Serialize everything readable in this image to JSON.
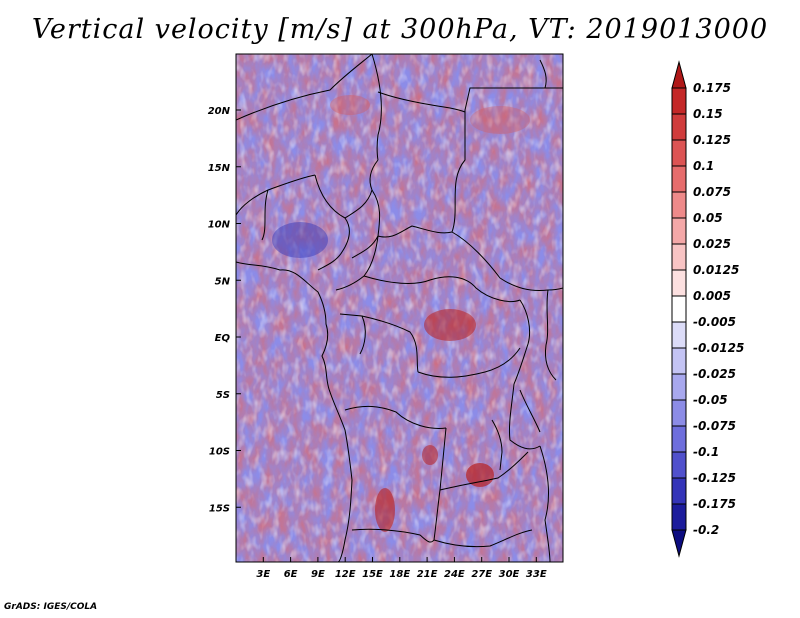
{
  "title": "Vertical velocity [m/s] at 300hPa, VT: 2019013000",
  "credit": "GrADS: IGES/COLA",
  "lat_axis": {
    "labels": [
      "20N",
      "15N",
      "10N",
      "5N",
      "EQ",
      "5S",
      "10S",
      "15S"
    ],
    "values": [
      20,
      15,
      10,
      5,
      0,
      -5,
      -10,
      -15
    ]
  },
  "lon_axis": {
    "labels": [
      "3E",
      "6E",
      "9E",
      "12E",
      "15E",
      "18E",
      "21E",
      "24E",
      "27E",
      "30E",
      "33E"
    ],
    "values": [
      3,
      6,
      9,
      12,
      15,
      18,
      21,
      24,
      27,
      30,
      33
    ]
  },
  "colorbar": {
    "labels": [
      "0.175",
      "0.15",
      "0.125",
      "0.1",
      "0.075",
      "0.05",
      "0.025",
      "0.0125",
      "0.005",
      "-0.005",
      "-0.0125",
      "-0.025",
      "-0.05",
      "-0.075",
      "-0.1",
      "-0.125",
      "-0.175",
      "-0.2"
    ],
    "colors": [
      "#b01818",
      "#c42828",
      "#d03c3c",
      "#dc5454",
      "#e66c6c",
      "#ee8a8a",
      "#f4a8a8",
      "#f8c4c4",
      "#fce0e0",
      "#ffffff",
      "#dcdcf8",
      "#c4c4f4",
      "#a8a8ee",
      "#8c8ce6",
      "#6e6edc",
      "#5050cc",
      "#3434b8",
      "#1c1c9c",
      "#0c0c80"
    ]
  }
}
